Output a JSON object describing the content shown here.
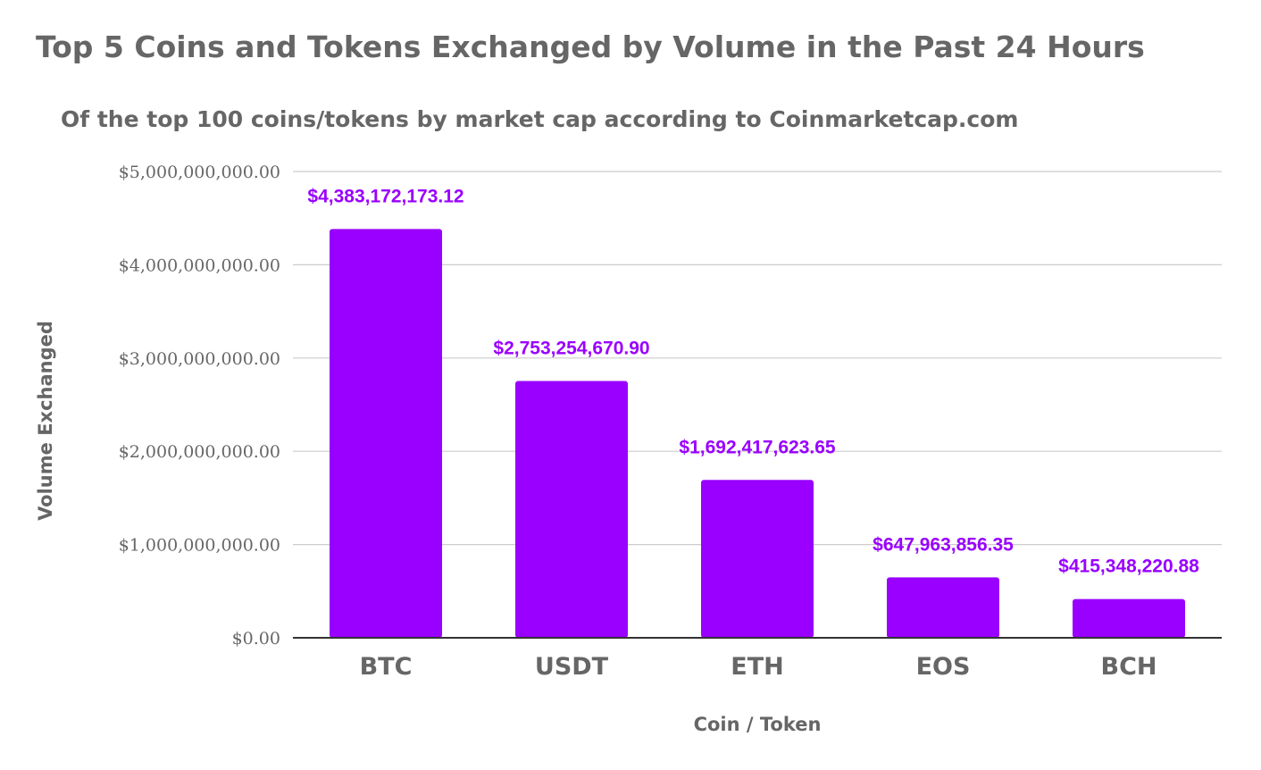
{
  "chart_data": {
    "type": "bar",
    "title": "Top 5 Coins and Tokens Exchanged by Volume in the Past 24 Hours",
    "subtitle": "Of the top 100 coins/tokens by market cap according to Coinmarketcap.com",
    "xlabel": "Coin / Token",
    "ylabel": "Volume Exchanged",
    "categories": [
      "BTC",
      "USDT",
      "ETH",
      "EOS",
      "BCH"
    ],
    "values": [
      4383172173.12,
      2753254670.9,
      1692417623.65,
      647963856.35,
      415348220.88
    ],
    "data_labels": [
      "$4,383,172,173.12",
      "$2,753,254,670.90",
      "$1,692,417,623.65",
      "$647,963,856.35",
      "$415,348,220.88"
    ],
    "ylim": [
      0,
      5000000000
    ],
    "yticks": [
      0,
      1000000000,
      2000000000,
      3000000000,
      4000000000,
      5000000000
    ],
    "ytick_labels": [
      "$0.00",
      "$1,000,000,000.00",
      "$2,000,000,000.00",
      "$3,000,000,000.00",
      "$4,000,000,000.00",
      "$5,000,000,000.00"
    ],
    "grid": true,
    "legend": "none",
    "colors": {
      "bar": "#9900ff",
      "data_label": "#9900ff",
      "grid": "#cccccc",
      "axis": "#333333",
      "text": "#666666"
    }
  }
}
